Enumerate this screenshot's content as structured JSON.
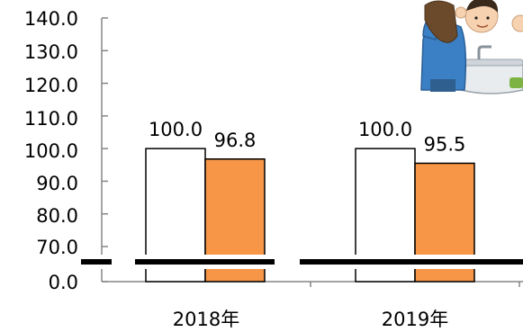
{
  "chart_data": {
    "type": "bar",
    "categories": [
      "2018年",
      "2019年"
    ],
    "series": [
      {
        "values": [
          100.0,
          100.0
        ],
        "color": "#ffffff",
        "stroke": "#000000"
      },
      {
        "values": [
          96.8,
          95.5
        ],
        "color": "#f79646",
        "stroke": "#000000"
      }
    ],
    "data_labels": [
      [
        "100.0",
        "100.0"
      ],
      [
        "96.8",
        "95.5"
      ]
    ],
    "y_ticks": [
      "140.0",
      "130.0",
      "120.0",
      "110.0",
      "100.0",
      "90.0",
      "80.0",
      "70.0",
      "0.0"
    ],
    "ylim": [
      70,
      140
    ],
    "axis_break": true,
    "grid": false,
    "title": "",
    "xlabel": "",
    "ylabel": ""
  },
  "illustration": {
    "subject": "person washing hair at a sink",
    "icon": "hair-washing-illustration"
  }
}
